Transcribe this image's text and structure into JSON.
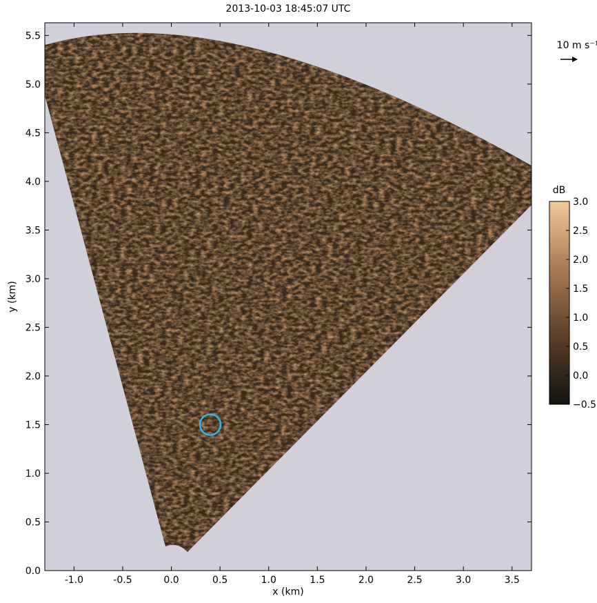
{
  "chart_data": {
    "type": "radar-image",
    "title": "2013-10-03 18:45:07 UTC",
    "x_label": "x (km)",
    "y_label": "y (km)",
    "xlim": [
      -1.3,
      3.7
    ],
    "ylim": [
      0,
      5.63
    ],
    "xticks": [
      {
        "value": -1.0,
        "label": "-1.0"
      },
      {
        "value": -0.5,
        "label": "-0.5"
      },
      {
        "value": 0.0,
        "label": "0.0"
      },
      {
        "value": 0.5,
        "label": "0.5"
      },
      {
        "value": 1.0,
        "label": "1.0"
      },
      {
        "value": 1.5,
        "label": "1.5"
      },
      {
        "value": 2.0,
        "label": "2.0"
      },
      {
        "value": 2.5,
        "label": "2.5"
      },
      {
        "value": 3.0,
        "label": "3.0"
      },
      {
        "value": 3.5,
        "label": "3.5"
      }
    ],
    "yticks": [
      {
        "value": 0.0,
        "label": "0.0"
      },
      {
        "value": 0.5,
        "label": "0.5"
      },
      {
        "value": 1.0,
        "label": "1.0"
      },
      {
        "value": 1.5,
        "label": "1.5"
      },
      {
        "value": 2.0,
        "label": "2.0"
      },
      {
        "value": 2.5,
        "label": "2.5"
      },
      {
        "value": 3.0,
        "label": "3.0"
      },
      {
        "value": 3.5,
        "label": "3.5"
      },
      {
        "value": 4.0,
        "label": "4.0"
      },
      {
        "value": 4.5,
        "label": "4.5"
      },
      {
        "value": 5.0,
        "label": "5.0"
      },
      {
        "value": 5.5,
        "label": "5.5"
      }
    ],
    "background": "#d0d0dc",
    "colorbar": {
      "label": "dB",
      "lim": [
        -0.5,
        3.0
      ],
      "colors": [
        "#141210",
        "#5a3f28",
        "#a87a55",
        "#f2c99a"
      ],
      "ticks": [
        {
          "value": -0.5,
          "label": "−0.5"
        },
        {
          "value": 0.0,
          "label": "0.0"
        },
        {
          "value": 0.5,
          "label": "0.5"
        },
        {
          "value": 1.0,
          "label": "1.0"
        },
        {
          "value": 1.5,
          "label": "1.5"
        },
        {
          "value": 2.0,
          "label": "2.0"
        },
        {
          "value": 2.5,
          "label": "2.5"
        },
        {
          "value": 3.0,
          "label": "3.0"
        }
      ]
    },
    "reference_vector_label": "10 m s⁻¹",
    "marker": {
      "x": 0.4,
      "y": 1.5,
      "color": "#3ab4e6"
    }
  }
}
